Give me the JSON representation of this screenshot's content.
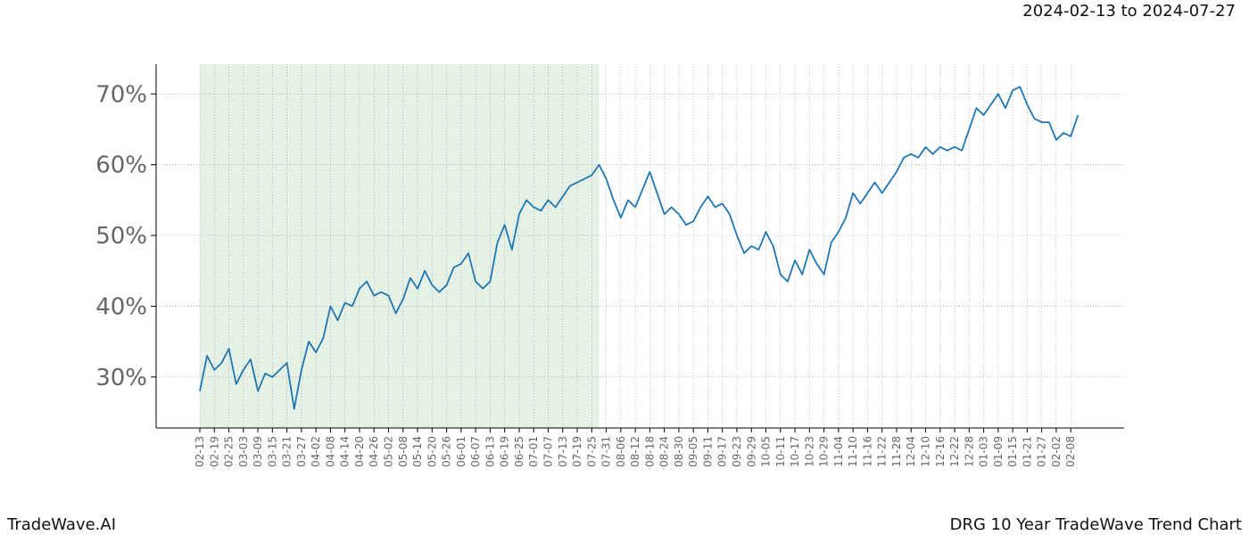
{
  "chart_data": {
    "type": "line",
    "header": "2024-02-13 to 2024-07-27",
    "footer_left": "TradeWave.AI",
    "footer_right": "DRG 10 Year TradeWave Trend Chart",
    "categories": [
      "02-13",
      null,
      "02-19",
      null,
      "02-25",
      null,
      "03-03",
      null,
      "03-09",
      null,
      "03-15",
      null,
      "03-21",
      null,
      "03-27",
      null,
      "04-02",
      null,
      "04-08",
      null,
      "04-14",
      null,
      "04-20",
      null,
      "04-26",
      null,
      "05-02",
      null,
      "05-08",
      null,
      "05-14",
      null,
      "05-20",
      null,
      "05-26",
      null,
      "06-01",
      null,
      "06-07",
      null,
      "06-13",
      null,
      "06-19",
      null,
      "06-25",
      null,
      "07-01",
      null,
      "07-07",
      null,
      "07-13",
      null,
      "07-19",
      null,
      "07-25",
      null,
      "07-31",
      null,
      "08-06",
      null,
      "08-12",
      null,
      "08-18",
      null,
      "08-24",
      null,
      "08-30",
      null,
      "09-05",
      null,
      "09-11",
      null,
      "09-17",
      null,
      "09-23",
      null,
      "09-29",
      null,
      "10-05",
      null,
      "10-11",
      null,
      "10-17",
      null,
      "10-23",
      null,
      "10-29",
      null,
      "11-04",
      null,
      "11-10",
      null,
      "11-16",
      null,
      "11-22",
      null,
      "11-28",
      null,
      "12-04",
      null,
      "12-10",
      null,
      "12-16",
      null,
      "12-22",
      null,
      "12-28",
      null,
      "01-03",
      null,
      "01-09",
      null,
      "01-15",
      null,
      "01-21",
      null,
      "01-27",
      null,
      "02-02",
      null,
      "02-08",
      null
    ],
    "series": [
      {
        "color": "#1f77b4",
        "values": [
          28,
          33,
          31,
          32,
          34,
          29,
          31,
          32.5,
          28,
          30.5,
          30,
          31,
          32,
          25.5,
          31,
          35,
          33.5,
          35.5,
          40,
          38,
          40.5,
          40,
          42.5,
          43.5,
          41.5,
          42,
          41.5,
          39,
          41,
          44,
          42.5,
          45,
          43,
          42,
          43,
          45.5,
          46,
          47.5,
          43.5,
          42.5,
          43.5,
          49,
          51.5,
          48,
          53,
          55,
          54,
          53.5,
          55,
          54,
          55.5,
          57,
          57.5,
          58,
          58.5,
          60,
          58,
          55,
          52.5,
          55,
          54,
          56.5,
          59,
          56,
          53,
          54,
          53,
          51.5,
          52,
          54,
          55.5,
          54,
          54.5,
          53,
          50,
          47.5,
          48.5,
          48,
          50.5,
          48.5,
          44.5,
          43.5,
          46.5,
          44.5,
          48,
          46,
          44.5,
          49,
          50.5,
          52.5,
          56,
          54.5,
          56,
          57.5,
          56,
          57.5,
          59,
          61,
          61.5,
          61,
          62.5,
          61.5,
          62.5,
          62,
          62.5,
          62,
          65,
          68,
          67,
          68.5,
          70,
          68,
          70.5,
          71,
          68.5,
          66.5,
          66,
          66,
          63.5,
          64.5,
          64,
          67
        ]
      }
    ],
    "shaded_span": [
      0,
      55
    ],
    "shade_color": "#e6f1e6",
    "ylim": [
      22.8,
      74.2
    ],
    "yticks": [
      {
        "value": 30,
        "label": "30%"
      },
      {
        "value": 40,
        "label": "40%"
      },
      {
        "value": 50,
        "label": "50%"
      },
      {
        "value": 60,
        "label": "60%"
      },
      {
        "value": 70,
        "label": "70%"
      }
    ],
    "grid": true
  }
}
